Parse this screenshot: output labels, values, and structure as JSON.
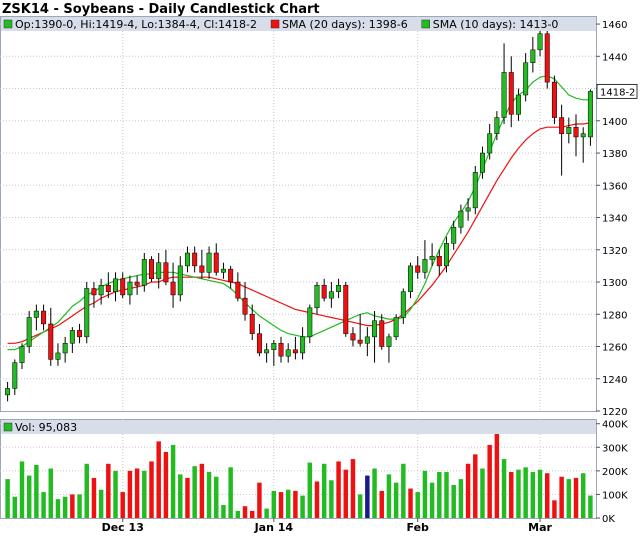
{
  "title": "ZSK14 - Soybeans - Daily Candlestick Chart",
  "colors": {
    "up": "#22bb22",
    "down": "#ee1111",
    "volume_neutral": "#1a1a8c",
    "sma20": "#ee1111",
    "sma10": "#22bb22",
    "grid": "#c8c8c8",
    "panel_border": "#9aa7b8",
    "legend_bg": "#d7deea"
  },
  "chart_data": [
    {
      "type": "candlestick",
      "title": "ZSK14 - Soybeans - Daily Candlestick Chart",
      "legend": [
        {
          "text": "Op:1390-0, Hi:1419-4, Lo:1384-4, Cl:1418-2",
          "color": "#22bb22"
        },
        {
          "text": "SMA (20 days): 1398-6",
          "color": "#ee1111"
        },
        {
          "text": "SMA (10 days): 1413-0",
          "color": "#22bb22"
        }
      ],
      "ylim": [
        1220,
        1465
      ],
      "yticks": [
        "1220",
        "1240",
        "1260",
        "1280",
        "1300",
        "1320",
        "1340",
        "1360",
        "1380",
        "1400",
        "1420",
        "1440",
        "1460"
      ],
      "last_price_label": "1418-2",
      "last_price": 1418.25,
      "x_labels": [
        "Dec 13",
        "Jan 14",
        "Feb",
        "Mar"
      ],
      "x_label_index": [
        16,
        37,
        57,
        74
      ],
      "grid": true,
      "series": [
        {
          "name": "Candles",
          "ohlc": [
            [
              1230,
              1238,
              1226,
              1234
            ],
            [
              1234,
              1252,
              1230,
              1250
            ],
            [
              1250,
              1262,
              1246,
              1260
            ],
            [
              1260,
              1282,
              1256,
              1278
            ],
            [
              1278,
              1286,
              1270,
              1282
            ],
            [
              1282,
              1286,
              1270,
              1274
            ],
            [
              1274,
              1284,
              1248,
              1252
            ],
            [
              1252,
              1262,
              1248,
              1256
            ],
            [
              1256,
              1266,
              1250,
              1262
            ],
            [
              1262,
              1272,
              1256,
              1270
            ],
            [
              1270,
              1274,
              1262,
              1266
            ],
            [
              1266,
              1300,
              1262,
              1296
            ],
            [
              1296,
              1300,
              1284,
              1292
            ],
            [
              1292,
              1302,
              1286,
              1298
            ],
            [
              1298,
              1306,
              1290,
              1294
            ],
            [
              1294,
              1306,
              1288,
              1302
            ],
            [
              1302,
              1306,
              1290,
              1292
            ],
            [
              1292,
              1304,
              1286,
              1300
            ],
            [
              1300,
              1304,
              1292,
              1298
            ],
            [
              1298,
              1318,
              1294,
              1314
            ],
            [
              1314,
              1316,
              1300,
              1302
            ],
            [
              1302,
              1318,
              1296,
              1312
            ],
            [
              1312,
              1320,
              1298,
              1300
            ],
            [
              1300,
              1312,
              1284,
              1292
            ],
            [
              1292,
              1316,
              1288,
              1310
            ],
            [
              1310,
              1322,
              1306,
              1318
            ],
            [
              1318,
              1322,
              1306,
              1310
            ],
            [
              1310,
              1320,
              1302,
              1306
            ],
            [
              1306,
              1322,
              1302,
              1318
            ],
            [
              1318,
              1324,
              1304,
              1306
            ],
            [
              1306,
              1312,
              1302,
              1308
            ],
            [
              1308,
              1310,
              1296,
              1300
            ],
            [
              1300,
              1306,
              1288,
              1290
            ],
            [
              1290,
              1300,
              1276,
              1280
            ],
            [
              1280,
              1286,
              1264,
              1268
            ],
            [
              1268,
              1274,
              1254,
              1256
            ],
            [
              1256,
              1262,
              1250,
              1258
            ],
            [
              1258,
              1264,
              1248,
              1262
            ],
            [
              1262,
              1266,
              1250,
              1254
            ],
            [
              1254,
              1262,
              1250,
              1258
            ],
            [
              1258,
              1266,
              1252,
              1256
            ],
            [
              1256,
              1272,
              1252,
              1266
            ],
            [
              1266,
              1286,
              1262,
              1284
            ],
            [
              1284,
              1300,
              1280,
              1298
            ],
            [
              1298,
              1302,
              1288,
              1290
            ],
            [
              1290,
              1300,
              1284,
              1294
            ],
            [
              1294,
              1302,
              1290,
              1298
            ],
            [
              1298,
              1300,
              1266,
              1268
            ],
            [
              1268,
              1272,
              1260,
              1264
            ],
            [
              1264,
              1280,
              1260,
              1262
            ],
            [
              1262,
              1272,
              1254,
              1266
            ],
            [
              1266,
              1282,
              1250,
              1276
            ],
            [
              1276,
              1280,
              1258,
              1260
            ],
            [
              1260,
              1268,
              1250,
              1266
            ],
            [
              1266,
              1280,
              1264,
              1278
            ],
            [
              1278,
              1296,
              1274,
              1294
            ],
            [
              1294,
              1312,
              1290,
              1310
            ],
            [
              1310,
              1316,
              1302,
              1306
            ],
            [
              1306,
              1326,
              1302,
              1314
            ],
            [
              1314,
              1324,
              1310,
              1316
            ],
            [
              1316,
              1320,
              1304,
              1310
            ],
            [
              1310,
              1328,
              1306,
              1324
            ],
            [
              1324,
              1338,
              1320,
              1334
            ],
            [
              1334,
              1348,
              1330,
              1344
            ],
            [
              1344,
              1352,
              1338,
              1346
            ],
            [
              1346,
              1372,
              1342,
              1368
            ],
            [
              1368,
              1384,
              1364,
              1380
            ],
            [
              1380,
              1398,
              1376,
              1392
            ],
            [
              1392,
              1406,
              1388,
              1402
            ],
            [
              1402,
              1448,
              1398,
              1430
            ],
            [
              1430,
              1440,
              1396,
              1404
            ],
            [
              1404,
              1420,
              1400,
              1416
            ],
            [
              1416,
              1442,
              1412,
              1436
            ],
            [
              1436,
              1452,
              1430,
              1444
            ],
            [
              1444,
              1460,
              1440,
              1454
            ],
            [
              1454,
              1462,
              1420,
              1424
            ],
            [
              1424,
              1428,
              1398,
              1402
            ],
            [
              1402,
              1410,
              1366,
              1392
            ],
            [
              1392,
              1402,
              1386,
              1396
            ],
            [
              1396,
              1404,
              1378,
              1390
            ],
            [
              1390,
              1396,
              1374,
              1392
            ],
            [
              1390,
              1419.5,
              1384.5,
              1418.25
            ]
          ]
        },
        {
          "name": "SMA (20 days)",
          "values": [
            1262,
            1262,
            1263,
            1265,
            1267,
            1269,
            1271,
            1273,
            1276,
            1279,
            1282,
            1285,
            1287,
            1290,
            1292,
            1294,
            1295,
            1296,
            1297,
            1298,
            1300,
            1300,
            1302,
            1303,
            1303,
            1303,
            1303,
            1303,
            1303,
            1302,
            1301,
            1300,
            1299,
            1297,
            1295,
            1293,
            1291,
            1289,
            1287,
            1285,
            1283,
            1282,
            1281,
            1280,
            1279,
            1278,
            1277,
            1276,
            1275,
            1274,
            1273,
            1273,
            1274,
            1275,
            1277,
            1280,
            1284,
            1288,
            1293,
            1298,
            1304,
            1310,
            1317,
            1324,
            1331,
            1339,
            1347,
            1355,
            1363,
            1370,
            1377,
            1383,
            1388,
            1392,
            1395,
            1396,
            1396,
            1396,
            1397,
            1398,
            1398,
            1398.75
          ]
        },
        {
          "name": "SMA (10 days)",
          "values": [
            1258,
            1258,
            1260,
            1263,
            1266,
            1269,
            1272,
            1275,
            1280,
            1285,
            1288,
            1292,
            1294,
            1297,
            1299,
            1301,
            1302,
            1303,
            1304,
            1305,
            1305,
            1306,
            1306,
            1306,
            1305,
            1304,
            1303,
            1302,
            1301,
            1300,
            1299,
            1296,
            1292,
            1287,
            1283,
            1279,
            1276,
            1273,
            1270,
            1268,
            1267,
            1266,
            1266,
            1268,
            1270,
            1272,
            1274,
            1276,
            1278,
            1280,
            1281,
            1279,
            1278,
            1277,
            1277,
            1278,
            1283,
            1290,
            1299,
            1310,
            1320,
            1329,
            1337,
            1343,
            1350,
            1359,
            1370,
            1381,
            1392,
            1402,
            1411,
            1416,
            1419,
            1424,
            1427,
            1428,
            1426,
            1421,
            1416,
            1414,
            1413,
            1413
          ]
        }
      ]
    },
    {
      "type": "bar",
      "legend": [
        {
          "text": "Vol: 95,083",
          "color": "#22bb22"
        }
      ],
      "ylim": [
        0,
        420000
      ],
      "yticks": [
        "0K",
        "100K",
        "200K",
        "300K",
        "400K"
      ],
      "series": [
        {
          "name": "Vol",
          "values": [
            165000,
            90000,
            240000,
            180000,
            225000,
            110000,
            210000,
            80000,
            90000,
            100000,
            100000,
            230000,
            170000,
            120000,
            230000,
            200000,
            110000,
            200000,
            210000,
            200000,
            240000,
            325000,
            280000,
            310000,
            185000,
            170000,
            220000,
            230000,
            195000,
            175000,
            55000,
            215000,
            30000,
            50000,
            30000,
            150000,
            40000,
            115000,
            110000,
            120000,
            115000,
            95000,
            235000,
            155000,
            230000,
            160000,
            240000,
            205000,
            250000,
            100000,
            180000,
            210000,
            115000,
            185000,
            150000,
            230000,
            125000,
            110000,
            200000,
            150000,
            195000,
            195000,
            140000,
            165000,
            230000,
            270000,
            210000,
            310000,
            380000,
            250000,
            195000,
            205000,
            215000,
            195000,
            205000,
            190000,
            75000,
            175000,
            165000,
            170000,
            190000,
            95083
          ],
          "colors": [
            "up",
            "up",
            "up",
            "up",
            "up",
            "up",
            "up",
            "up",
            "up",
            "down",
            "up",
            "up",
            "down",
            "up",
            "down",
            "up",
            "down",
            "down",
            "down",
            "up",
            "down",
            "down",
            "down",
            "up",
            "up",
            "down",
            "up",
            "down",
            "up",
            "up",
            "up",
            "up",
            "up",
            "down",
            "down",
            "down",
            "up",
            "up",
            "down",
            "up",
            "down",
            "up",
            "up",
            "down",
            "up",
            "up",
            "down",
            "down",
            "down",
            "up",
            "neutral",
            "up",
            "down",
            "up",
            "up",
            "up",
            "down",
            "up",
            "up",
            "up",
            "up",
            "up",
            "up",
            "up",
            "down",
            "down",
            "up",
            "down",
            "down",
            "up",
            "down",
            "up",
            "up",
            "up",
            "up",
            "down",
            "down",
            "down",
            "up",
            "down",
            "up",
            "up"
          ]
        }
      ]
    }
  ]
}
